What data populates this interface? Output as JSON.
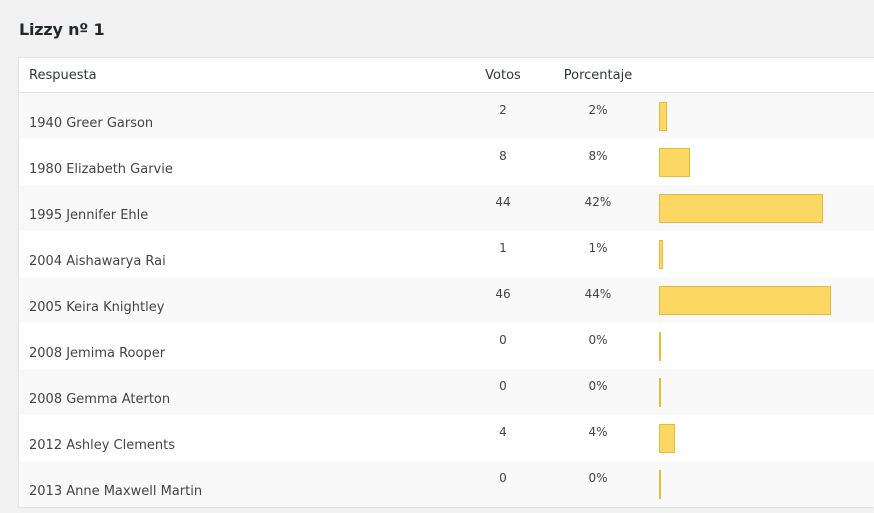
{
  "poll": {
    "title": "Lizzy nº 1",
    "columns": {
      "answer": "Respuesta",
      "votes": "Votos",
      "percent": "Porcentaje"
    },
    "bar_color": "#fdd763",
    "bar_border_color": "#e6bc36",
    "rows": [
      {
        "answer": "1940 Greer Garson",
        "votes": "2",
        "percent": "2%",
        "fraction": 0.02
      },
      {
        "answer": "1980 Elizabeth Garvie",
        "votes": "8",
        "percent": "8%",
        "fraction": 0.08
      },
      {
        "answer": "1995 Jennifer Ehle",
        "votes": "44",
        "percent": "42%",
        "fraction": 0.42
      },
      {
        "answer": "2004 Aishawarya Rai",
        "votes": "1",
        "percent": "1%",
        "fraction": 0.01
      },
      {
        "answer": "2005 Keira Knightley",
        "votes": "46",
        "percent": "44%",
        "fraction": 0.44
      },
      {
        "answer": "2008 Jemima Rooper",
        "votes": "0",
        "percent": "0%",
        "fraction": 0.0
      },
      {
        "answer": "2008 Gemma Aterton",
        "votes": "0",
        "percent": "0%",
        "fraction": 0.0
      },
      {
        "answer": "2012 Ashley Clements",
        "votes": "4",
        "percent": "4%",
        "fraction": 0.04
      },
      {
        "answer": "2013 Anne Maxwell Martin",
        "votes": "0",
        "percent": "0%",
        "fraction": 0.0
      }
    ]
  }
}
